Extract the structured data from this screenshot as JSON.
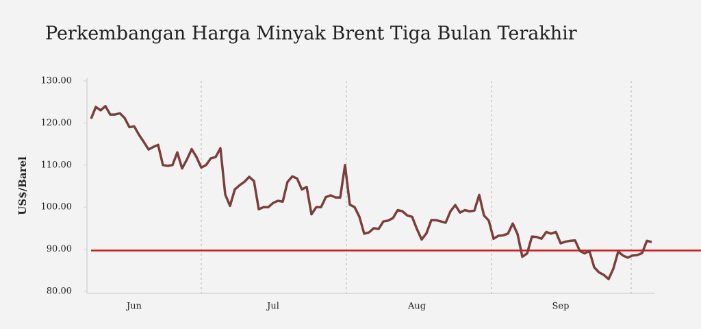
{
  "chart_data": {
    "type": "line",
    "title": "Perkembangan Harga Minyak Brent Tiga Bulan Terakhir",
    "ylabel": "US$/Barel",
    "categories": [
      null,
      null,
      null,
      null,
      null,
      null,
      null,
      null,
      null,
      "Jun",
      null,
      null,
      null,
      null,
      null,
      null,
      null,
      null,
      null,
      null,
      null,
      null,
      null,
      null,
      null,
      null,
      null,
      null,
      null,
      null,
      null,
      null,
      null,
      null,
      null,
      null,
      null,
      null,
      "Jul",
      null,
      null,
      null,
      null,
      null,
      null,
      null,
      null,
      null,
      null,
      null,
      null,
      null,
      null,
      null,
      null,
      null,
      null,
      null,
      null,
      null,
      null,
      null,
      null,
      null,
      null,
      null,
      null,
      null,
      "Aug",
      null,
      null,
      null,
      null,
      null,
      null,
      null,
      null,
      null,
      null,
      null,
      null,
      null,
      null,
      null,
      null,
      null,
      null,
      null,
      null,
      null,
      null,
      null,
      null,
      null,
      null,
      null,
      null,
      null,
      "Sep",
      null,
      null,
      null,
      null,
      null,
      null,
      null,
      null,
      null,
      null,
      null,
      null,
      null,
      null,
      null,
      null,
      null,
      null,
      null
    ],
    "series": [
      {
        "name": "Brent",
        "color": "#7b3f3a",
        "values": [
          121,
          123.8,
          123,
          124,
          122,
          122,
          122.3,
          121.2,
          119,
          119.2,
          117.2,
          115.5,
          113.7,
          114.3,
          114.8,
          110,
          109.8,
          110,
          113,
          109.2,
          111.3,
          113.8,
          111.9,
          109.4,
          110,
          111.6,
          111.9,
          114,
          103,
          100.3,
          104.2,
          105.2,
          106,
          107.2,
          106.2,
          99.5,
          100,
          100,
          101,
          101.5,
          101.3,
          106,
          107.3,
          106.8,
          104.2,
          104.8,
          98.3,
          100,
          100,
          102.4,
          102.8,
          102.3,
          102.3,
          110,
          100.6,
          100,
          97.7,
          93.7,
          94,
          95,
          94.8,
          96.6,
          96.8,
          97.4,
          99.3,
          99,
          98,
          97.7,
          94.8,
          92.3,
          93.8,
          96.9,
          96.9,
          96.6,
          96.3,
          99,
          100.5,
          98.7,
          99.3,
          99,
          99.2,
          102.9,
          98,
          96.8,
          92.5,
          93.2,
          93.3,
          93.7,
          96.1,
          93.6,
          88.2,
          89,
          93,
          92.9,
          92.5,
          94.1,
          93.7,
          94.1,
          91.4,
          91.8,
          92,
          92.1,
          89.6,
          89,
          89.6,
          85.7,
          84.5,
          83.9,
          82.9,
          85.4,
          89.4,
          88.5,
          88,
          88.5,
          88.6,
          89.1,
          92,
          91.7
        ]
      }
    ],
    "reference_line": {
      "value": 89.7,
      "color": "#d0191a"
    },
    "ylim": [
      80,
      130
    ],
    "yticks": [
      {
        "value": 80,
        "label": "80.00"
      },
      {
        "value": 90,
        "label": "90.00"
      },
      {
        "value": 100,
        "label": "100.00"
      },
      {
        "value": 110,
        "label": "110.00"
      },
      {
        "value": 120,
        "label": "120.00"
      },
      {
        "value": 130,
        "label": "130.00"
      }
    ]
  }
}
